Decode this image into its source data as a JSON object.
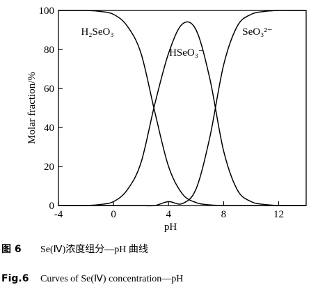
{
  "chart_data": {
    "type": "line",
    "x_label": "pH",
    "y_label": "Molar fraction/%",
    "x": [
      -4,
      -3,
      -2,
      -1,
      0,
      1,
      2,
      3,
      4,
      5,
      6,
      7,
      8,
      9,
      10,
      11,
      12,
      13,
      14
    ],
    "series": [
      {
        "name": "H₂SeO₃",
        "color": "#000000",
        "values": [
          100,
          100,
          100,
          99.5,
          98,
          92,
          78,
          48,
          20,
          6,
          1.5,
          0.3,
          0,
          0,
          0,
          0,
          0,
          0,
          0
        ]
      },
      {
        "name": "HSeO₃⁻",
        "color": "#000000",
        "values": [
          0,
          0,
          0,
          0.5,
          2,
          8,
          22,
          52,
          78,
          93,
          90,
          65,
          28,
          8,
          2,
          0.5,
          0,
          0,
          0
        ]
      },
      {
        "name": "SeO₃²⁻",
        "color": "#000000",
        "values": [
          0,
          0,
          0,
          0,
          0,
          0,
          0,
          0,
          2,
          1,
          8.5,
          35,
          72,
          92,
          98,
          99.5,
          100,
          100,
          100
        ]
      }
    ],
    "xlim": [
      -4,
      14
    ],
    "xticks": [
      -4,
      0,
      4,
      8,
      12
    ],
    "ylim": [
      0,
      100
    ],
    "yticks": [
      0,
      20,
      40,
      60,
      80,
      100
    ]
  },
  "captions": [
    {
      "label": "图 6",
      "text": "Se(Ⅳ)浓度组分—pH 曲线"
    },
    {
      "label": "Fig.6",
      "text": "Curves of Se(Ⅳ) concentration—pH"
    }
  ]
}
